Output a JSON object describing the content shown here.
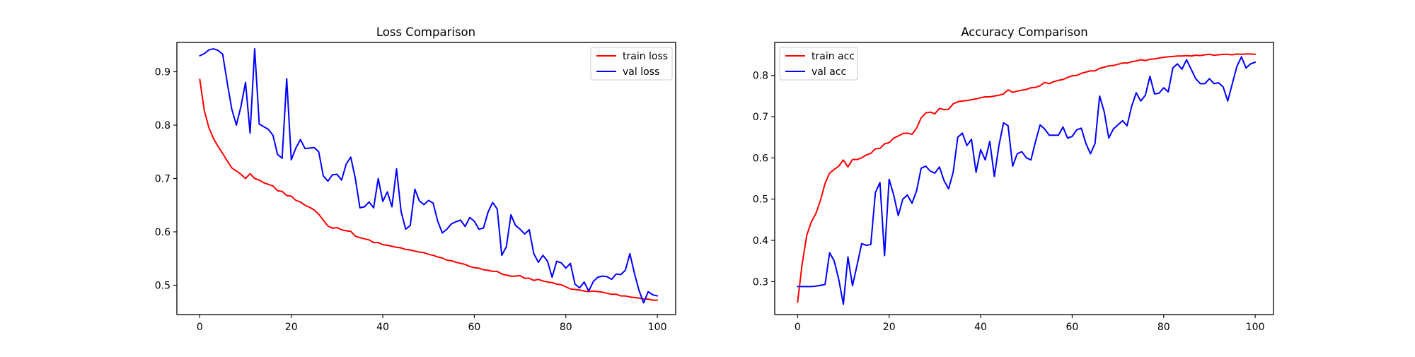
{
  "chart_data": [
    {
      "type": "line",
      "title": "Loss Comparison",
      "xlabel": "",
      "ylabel": "",
      "xlim": [
        -5,
        104
      ],
      "ylim": [
        0.445,
        0.955
      ],
      "xticks": [
        0,
        20,
        40,
        60,
        80,
        100
      ],
      "yticks": [
        0.5,
        0.6,
        0.7,
        0.8,
        0.9
      ],
      "xtick_labels": [
        "0",
        "20",
        "40",
        "60",
        "80",
        "100"
      ],
      "ytick_labels": [
        "0.5",
        "0.6",
        "0.7",
        "0.8",
        "0.9"
      ],
      "grid": false,
      "legend_position": "top-right",
      "series": [
        {
          "name": "train loss",
          "color": "#ff0000",
          "values": [
            0.886,
            0.827,
            0.795,
            0.775,
            0.76,
            0.747,
            0.733,
            0.72,
            0.714,
            0.708,
            0.7,
            0.709,
            0.7,
            0.697,
            0.692,
            0.689,
            0.686,
            0.677,
            0.676,
            0.668,
            0.667,
            0.659,
            0.656,
            0.65,
            0.646,
            0.641,
            0.633,
            0.622,
            0.611,
            0.607,
            0.608,
            0.604,
            0.602,
            0.601,
            0.592,
            0.589,
            0.587,
            0.585,
            0.58,
            0.58,
            0.576,
            0.575,
            0.573,
            0.571,
            0.57,
            0.567,
            0.566,
            0.564,
            0.562,
            0.561,
            0.558,
            0.556,
            0.553,
            0.551,
            0.547,
            0.546,
            0.543,
            0.541,
            0.539,
            0.535,
            0.533,
            0.532,
            0.529,
            0.528,
            0.526,
            0.526,
            0.521,
            0.519,
            0.517,
            0.517,
            0.518,
            0.513,
            0.513,
            0.509,
            0.511,
            0.508,
            0.506,
            0.505,
            0.502,
            0.501,
            0.497,
            0.493,
            0.492,
            0.491,
            0.489,
            0.488,
            0.489,
            0.488,
            0.487,
            0.485,
            0.483,
            0.483,
            0.48,
            0.48,
            0.478,
            0.477,
            0.476,
            0.474,
            0.474,
            0.472,
            0.472
          ]
        },
        {
          "name": "val loss",
          "color": "#0000ff",
          "values": [
            0.93,
            0.934,
            0.941,
            0.943,
            0.94,
            0.933,
            0.88,
            0.83,
            0.8,
            0.835,
            0.88,
            0.785,
            0.943,
            0.802,
            0.797,
            0.792,
            0.781,
            0.745,
            0.738,
            0.887,
            0.735,
            0.757,
            0.773,
            0.756,
            0.757,
            0.758,
            0.75,
            0.705,
            0.695,
            0.707,
            0.708,
            0.697,
            0.727,
            0.74,
            0.7,
            0.645,
            0.647,
            0.656,
            0.645,
            0.7,
            0.657,
            0.675,
            0.647,
            0.718,
            0.638,
            0.605,
            0.612,
            0.68,
            0.658,
            0.651,
            0.659,
            0.654,
            0.62,
            0.598,
            0.605,
            0.615,
            0.619,
            0.622,
            0.61,
            0.627,
            0.62,
            0.605,
            0.607,
            0.637,
            0.655,
            0.643,
            0.556,
            0.572,
            0.632,
            0.612,
            0.605,
            0.596,
            0.604,
            0.559,
            0.543,
            0.556,
            0.545,
            0.515,
            0.545,
            0.542,
            0.532,
            0.541,
            0.502,
            0.495,
            0.506,
            0.489,
            0.507,
            0.515,
            0.517,
            0.516,
            0.511,
            0.521,
            0.52,
            0.528,
            0.559,
            0.522,
            0.49,
            0.467,
            0.488,
            0.482,
            0.48
          ]
        }
      ]
    },
    {
      "type": "line",
      "title": "Accuracy Comparison",
      "xlabel": "",
      "ylabel": "",
      "xlim": [
        -5,
        104
      ],
      "ylim": [
        0.22,
        0.88
      ],
      "xticks": [
        0,
        20,
        40,
        60,
        80,
        100
      ],
      "yticks": [
        0.3,
        0.4,
        0.5,
        0.6,
        0.7,
        0.8
      ],
      "xtick_labels": [
        "0",
        "20",
        "40",
        "60",
        "80",
        "100"
      ],
      "ytick_labels": [
        "0.3",
        "0.4",
        "0.5",
        "0.6",
        "0.7",
        "0.8"
      ],
      "grid": false,
      "legend_position": "top-left",
      "series": [
        {
          "name": "train acc",
          "color": "#ff0000",
          "values": [
            0.25,
            0.343,
            0.412,
            0.445,
            0.465,
            0.497,
            0.538,
            0.563,
            0.572,
            0.58,
            0.595,
            0.578,
            0.596,
            0.596,
            0.6,
            0.607,
            0.611,
            0.622,
            0.623,
            0.634,
            0.637,
            0.648,
            0.653,
            0.659,
            0.66,
            0.657,
            0.672,
            0.697,
            0.709,
            0.711,
            0.707,
            0.72,
            0.717,
            0.718,
            0.731,
            0.736,
            0.738,
            0.739,
            0.741,
            0.743,
            0.746,
            0.748,
            0.748,
            0.75,
            0.752,
            0.755,
            0.765,
            0.759,
            0.762,
            0.764,
            0.766,
            0.77,
            0.771,
            0.775,
            0.783,
            0.78,
            0.785,
            0.788,
            0.79,
            0.795,
            0.799,
            0.8,
            0.805,
            0.808,
            0.811,
            0.811,
            0.817,
            0.82,
            0.823,
            0.824,
            0.827,
            0.83,
            0.83,
            0.833,
            0.835,
            0.838,
            0.836,
            0.839,
            0.84,
            0.842,
            0.844,
            0.845,
            0.846,
            0.847,
            0.847,
            0.848,
            0.847,
            0.849,
            0.848,
            0.85,
            0.851,
            0.849,
            0.85,
            0.851,
            0.851,
            0.85,
            0.852,
            0.851,
            0.852,
            0.852,
            0.851
          ]
        },
        {
          "name": "val acc",
          "color": "#0000ff",
          "values": [
            0.288,
            0.288,
            0.288,
            0.288,
            0.289,
            0.291,
            0.293,
            0.37,
            0.35,
            0.305,
            0.245,
            0.36,
            0.29,
            0.34,
            0.392,
            0.388,
            0.39,
            0.516,
            0.54,
            0.363,
            0.548,
            0.51,
            0.46,
            0.5,
            0.51,
            0.49,
            0.52,
            0.575,
            0.58,
            0.568,
            0.563,
            0.578,
            0.545,
            0.525,
            0.565,
            0.65,
            0.66,
            0.63,
            0.645,
            0.565,
            0.62,
            0.595,
            0.64,
            0.555,
            0.63,
            0.685,
            0.678,
            0.58,
            0.61,
            0.615,
            0.6,
            0.595,
            0.64,
            0.68,
            0.67,
            0.655,
            0.655,
            0.655,
            0.675,
            0.648,
            0.652,
            0.668,
            0.672,
            0.635,
            0.61,
            0.635,
            0.75,
            0.712,
            0.648,
            0.67,
            0.68,
            0.69,
            0.678,
            0.725,
            0.758,
            0.738,
            0.752,
            0.798,
            0.755,
            0.757,
            0.77,
            0.76,
            0.818,
            0.828,
            0.815,
            0.838,
            0.815,
            0.792,
            0.78,
            0.78,
            0.792,
            0.78,
            0.782,
            0.772,
            0.738,
            0.78,
            0.822,
            0.845,
            0.818,
            0.828,
            0.832
          ]
        }
      ]
    }
  ]
}
